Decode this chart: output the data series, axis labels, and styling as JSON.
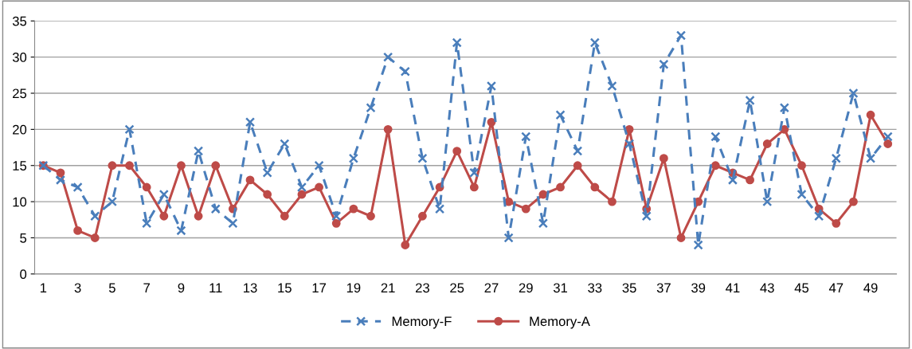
{
  "chart_data": {
    "type": "line",
    "categories": [
      "1",
      null,
      "3",
      null,
      "5",
      null,
      "7",
      null,
      "9",
      null,
      "11",
      null,
      "13",
      null,
      "15",
      null,
      "17",
      null,
      "19",
      null,
      "21",
      null,
      "23",
      null,
      "25",
      null,
      "27",
      null,
      "29",
      null,
      "31",
      null,
      "33",
      null,
      "35",
      null,
      "37",
      null,
      "39",
      null,
      "41",
      null,
      "43",
      null,
      "45",
      null,
      "47",
      null,
      "49",
      null
    ],
    "series": [
      {
        "name": "Memory-F",
        "color": "#4a7ebb",
        "marker": "cross",
        "line_style": "dashed",
        "values": [
          15,
          13,
          12,
          8,
          10,
          20,
          7,
          11,
          6,
          17,
          9,
          7,
          21,
          14,
          18,
          12,
          15,
          8,
          16,
          23,
          30,
          28,
          16,
          9,
          32,
          14,
          26,
          5,
          19,
          7,
          22,
          17,
          32,
          26,
          18,
          8,
          29,
          33,
          4,
          19,
          13,
          24,
          10,
          23,
          11,
          8,
          16,
          25,
          16,
          19
        ]
      },
      {
        "name": "Memory-A",
        "color": "#be4b48",
        "marker": "circle",
        "line_style": "solid",
        "values": [
          15,
          14,
          6,
          5,
          15,
          15,
          12,
          8,
          15,
          8,
          15,
          9,
          13,
          11,
          8,
          11,
          12,
          7,
          9,
          8,
          20,
          4,
          8,
          12,
          17,
          12,
          21,
          10,
          9,
          11,
          12,
          15,
          12,
          10,
          20,
          9,
          16,
          5,
          10,
          15,
          14,
          13,
          18,
          20,
          15,
          9,
          7,
          10,
          22,
          18
        ]
      }
    ],
    "ylim": [
      0,
      35
    ],
    "yticks": [
      0,
      5,
      10,
      15,
      20,
      25,
      30,
      35
    ],
    "grid": "y",
    "legend": "bottom"
  }
}
